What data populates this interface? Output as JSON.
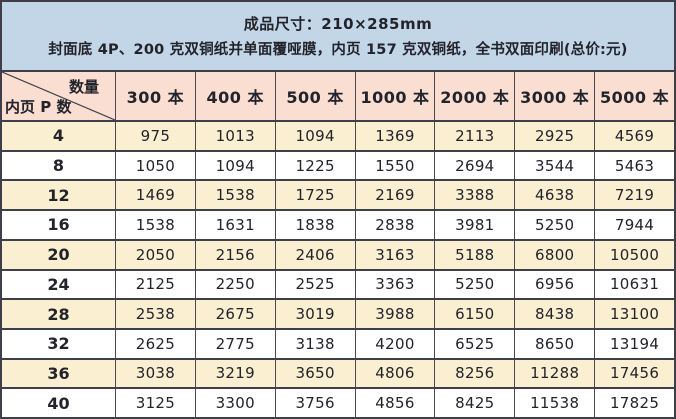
{
  "banner": {
    "line1": "成品尺寸：210×285mm",
    "line2": "封面底 4P、200 克双铜纸并单面覆哑膜，内页 157 克双铜纸，全书双面印刷(总价:元)"
  },
  "table": {
    "corner": {
      "top_right_label": "数量",
      "bottom_left_label": "内页 P 数"
    },
    "quantity_headers": [
      "300 本",
      "400 本",
      "500 本",
      "1000 本",
      "2000 本",
      "3000 本",
      "5000 本"
    ],
    "rows": [
      {
        "pages": "4",
        "prices": [
          975,
          1013,
          1094,
          1369,
          2113,
          2925,
          4569
        ]
      },
      {
        "pages": "8",
        "prices": [
          1050,
          1094,
          1225,
          1550,
          2694,
          3544,
          5463
        ]
      },
      {
        "pages": "12",
        "prices": [
          1469,
          1538,
          1725,
          2169,
          3388,
          4638,
          7219
        ]
      },
      {
        "pages": "16",
        "prices": [
          1538,
          1631,
          1838,
          2838,
          3981,
          5250,
          7944
        ]
      },
      {
        "pages": "20",
        "prices": [
          2050,
          2156,
          2406,
          3163,
          5188,
          6800,
          10500
        ]
      },
      {
        "pages": "24",
        "prices": [
          2125,
          2250,
          2525,
          3363,
          5250,
          6956,
          10631
        ]
      },
      {
        "pages": "28",
        "prices": [
          2538,
          2675,
          3019,
          3988,
          6150,
          8438,
          13100
        ]
      },
      {
        "pages": "32",
        "prices": [
          2625,
          2775,
          3138,
          4200,
          6525,
          8650,
          13194
        ]
      },
      {
        "pages": "36",
        "prices": [
          3038,
          3219,
          3650,
          4806,
          8256,
          11288,
          17456
        ]
      },
      {
        "pages": "40",
        "prices": [
          3125,
          3300,
          3756,
          4856,
          8425,
          11538,
          17825
        ]
      }
    ]
  },
  "colors": {
    "banner_background": "#c2d6e7",
    "header_background": "#f9ded1",
    "odd_row_background": "#faefd0",
    "even_row_background": "#ffffff",
    "border": "#3f3f4a",
    "text": "#23232c"
  }
}
